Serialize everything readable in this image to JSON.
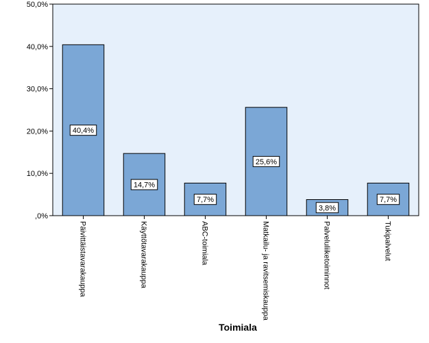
{
  "chart_data": {
    "type": "bar",
    "title": "",
    "xlabel": "Toimiala",
    "ylabel": "",
    "ylim": [
      0,
      50
    ],
    "yticks": [
      0,
      10,
      20,
      30,
      40,
      50
    ],
    "ytick_labels": [
      ",0%",
      "10,0%",
      "20,0%",
      "30,0%",
      "40,0%",
      "50,0%"
    ],
    "categories": [
      "Päivittäistavarakauppa",
      "Käyttötavarakauppa",
      "ABC-toimiala",
      "Matkailu- ja ravitsemiskauppa",
      "Palveluliiketoiminnot",
      "Tukipalvelut"
    ],
    "values": [
      40.4,
      14.7,
      7.7,
      25.6,
      3.8,
      7.7
    ],
    "data_labels": [
      "40,4%",
      "14,7%",
      "7,7%",
      "25,6%",
      "3,8%",
      "7,7%"
    ],
    "grid": false,
    "legend": "none",
    "colors": {
      "bar_fill": "#7BA7D6",
      "bar_stroke": "#000000",
      "plot_background": "#E6F0FB",
      "axis": "#000000",
      "label_box": "#FFFFFF"
    }
  }
}
